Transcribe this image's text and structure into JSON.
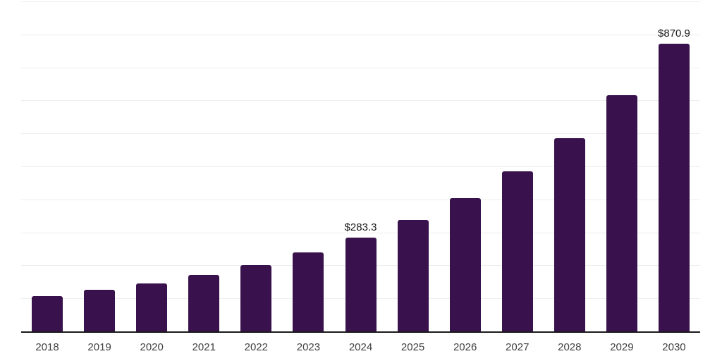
{
  "chart_data": {
    "type": "bar",
    "title": "",
    "xlabel": "",
    "ylabel": "",
    "categories": [
      "2018",
      "2019",
      "2020",
      "2021",
      "2022",
      "2023",
      "2024",
      "2025",
      "2026",
      "2027",
      "2028",
      "2029",
      "2030"
    ],
    "values": [
      106.8,
      126.1,
      146.4,
      170.9,
      200.9,
      238.7,
      283.3,
      337.6,
      403.9,
      485.7,
      586.2,
      715.2,
      870.9
    ],
    "data_labels": [
      null,
      null,
      null,
      null,
      null,
      null,
      "$283.3",
      null,
      null,
      null,
      null,
      null,
      "$870.9"
    ],
    "ylim": [
      0,
      1000
    ],
    "grid": true,
    "grid_interval": 100,
    "legend": false,
    "colors": {
      "bar": "#38114D",
      "grid": "#ededed",
      "axis": "#1a1a1a",
      "tick_label": "#404040",
      "data_label": "#1a1a1a",
      "background": "#ffffff"
    }
  }
}
